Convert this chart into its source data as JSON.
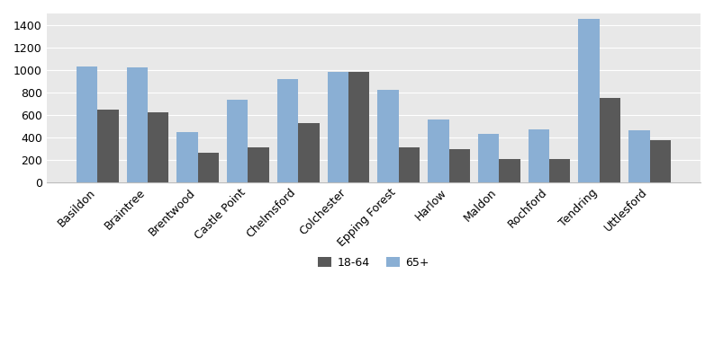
{
  "categories": [
    "Basildon",
    "Braintree",
    "Brentwood",
    "Castle Point",
    "Chelmsford",
    "Colchester",
    "Epping Forest",
    "Harlow",
    "Maldon",
    "Rochford",
    "Tendring",
    "Uttlesford"
  ],
  "values_18_64": [
    645,
    625,
    260,
    310,
    530,
    985,
    310,
    295,
    210,
    205,
    750,
    375
  ],
  "values_65plus": [
    1030,
    1025,
    450,
    730,
    915,
    985,
    820,
    555,
    430,
    470,
    1450,
    465
  ],
  "color_18_64": "#595959",
  "color_65plus": "#8aafd4",
  "legend_labels": [
    "18-64",
    "65+"
  ],
  "ylim": [
    0,
    1500
  ],
  "yticks": [
    0,
    200,
    400,
    600,
    800,
    1000,
    1200,
    1400
  ],
  "bar_width": 0.42,
  "figsize": [
    7.93,
    3.94
  ],
  "dpi": 100,
  "plot_bg_color": "#e8e8e8",
  "fig_bg_color": "#ffffff",
  "grid_color": "#ffffff"
}
